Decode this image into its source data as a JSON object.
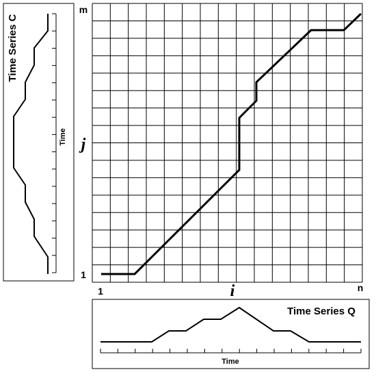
{
  "grid_labels": {
    "top_row": "m",
    "row_index": "j",
    "bottom_row": "1",
    "first_col": "1",
    "col_index": "i",
    "last_col": "n"
  },
  "series_c": {
    "title": "Time Series C",
    "axis_label": "Time"
  },
  "series_q": {
    "title": "Time Series Q",
    "axis_label": "Time"
  }
}
